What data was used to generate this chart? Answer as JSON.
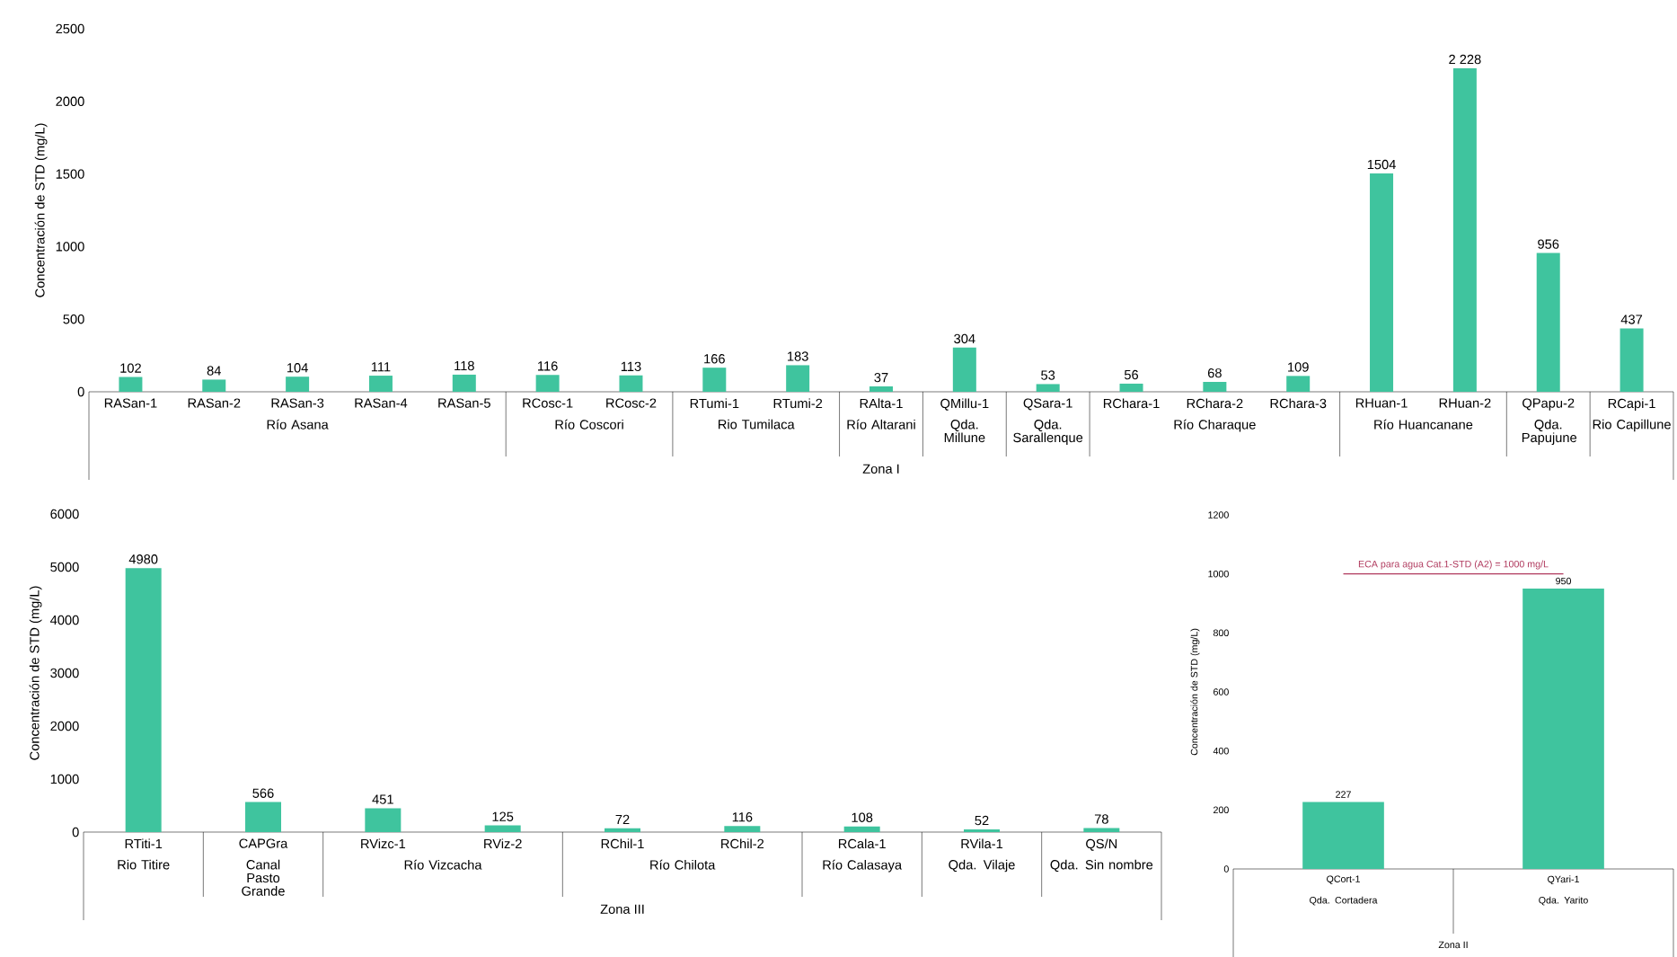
{
  "chart_data": [
    {
      "type": "bar",
      "ylabel": "Concentración de STD (mg/L)",
      "xlabel": "Zona I",
      "color": "#3fc49e",
      "categories": [
        "RASan-1",
        "RASan-2",
        "RASan-3",
        "RASan-4",
        "RASan-5",
        "RCosc-1",
        "RCosc-2",
        "RTumi-1",
        "RTumi-2",
        "RAlta-1",
        "QMillu-1",
        "QSara-1",
        "RChara-1",
        "RChara-2",
        "RChara-3",
        "RHuan-1",
        "RHuan-2",
        "QPapu-2",
        "RCapi-1"
      ],
      "values": [
        102,
        84,
        104,
        111,
        118,
        116,
        113,
        166,
        183,
        37,
        304,
        53,
        56,
        68,
        109,
        1504,
        2228,
        956,
        437
      ],
      "value_labels": [
        "102",
        "84",
        "104",
        "111",
        "118",
        "116",
        "113",
        "166",
        "183",
        "37",
        "304",
        "53",
        "56",
        "68",
        "109",
        "1504",
        "2 228",
        "956",
        "437"
      ],
      "ylim": [
        0,
        2500
      ],
      "yticks": [
        0,
        500,
        1000,
        1500,
        2000,
        2500
      ],
      "annotations": [
        "Río Asana",
        "Río Coscori",
        "Rio Tumilaca",
        "Río Altarani",
        "Qda. Millune",
        "Qda. Sarallenque",
        "Río Charaque",
        "Río Huancanane",
        "Qda. Papujune",
        "Rio Capillune"
      ]
    },
    {
      "type": "bar",
      "ylabel": "Concentración de STD (mg/L)",
      "xlabel": "Zona III",
      "color": "#3fc49e",
      "categories": [
        "RTiti-1",
        "CAPGra",
        "RVizc-1",
        "RViz-2",
        "RChil-1",
        "RChil-2",
        "RCala-1",
        "RVila-1",
        "QS/N"
      ],
      "values": [
        4980,
        566,
        451,
        125,
        72,
        116,
        108,
        52,
        78
      ],
      "value_labels": [
        "4980",
        "566",
        "451",
        "125",
        "72",
        "116",
        "108",
        "52",
        "78"
      ],
      "ylim": [
        0,
        6000
      ],
      "yticks": [
        0,
        1000,
        2000,
        3000,
        4000,
        5000,
        6000
      ],
      "annotations": [
        "Rio Titire",
        "Canal Pasto Grande",
        "Río Vizcacha",
        "Río Chilota",
        "Río Calasaya",
        "Qda. Vilaje",
        "Qda. Sin nombre"
      ]
    },
    {
      "type": "bar",
      "ylabel": "Concentración de STD (mg/L)",
      "xlabel": "Zona II",
      "color": "#3fc49e",
      "categories": [
        "QCort-1",
        "QYari-1"
      ],
      "values": [
        227,
        950
      ],
      "value_labels": [
        "227",
        "950"
      ],
      "ylim": [
        0,
        1200
      ],
      "yticks": [
        0,
        200,
        400,
        600,
        800,
        1000,
        1200
      ],
      "ref_lines": [
        {
          "axis": "y",
          "value": 1000,
          "label": "ECA para agua Cat.1-STD (A2) = 1000 mg/L",
          "color": "#b03a5e"
        }
      ],
      "annotations": [
        "Qda. Cortadera",
        "Qda. Yarito"
      ]
    }
  ]
}
